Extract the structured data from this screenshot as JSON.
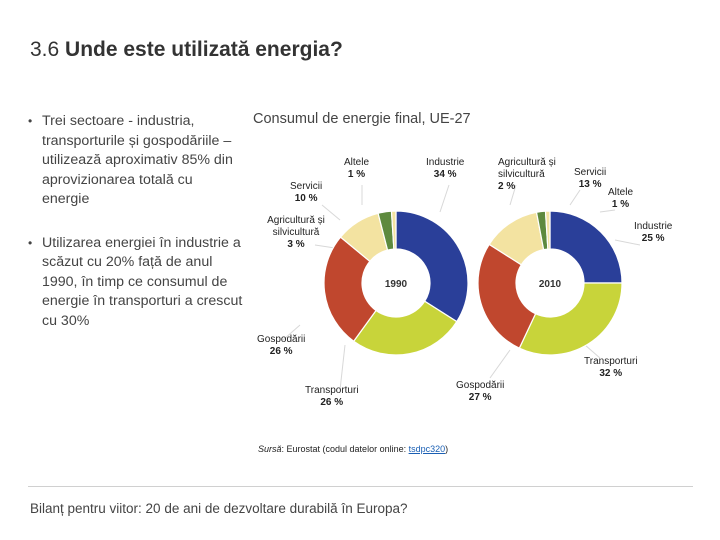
{
  "slide": {
    "number": "3.6",
    "title": "Unde este utilizată energia?",
    "bullets": [
      "Trei sectoare - industria, transporturile și gospodăriile – utilizează aproximativ 85% din aprovizionarea totală cu energie",
      "Utilizarea energiei în industrie a scăzut cu 20% față de anul 1990, în timp ce consumul de energie în transporturi a crescut cu 30%"
    ],
    "footer": "Bilanț pentru viitor: 20 de ani de dezvoltare durabilă în Europa?"
  },
  "source": {
    "label": "Sursă",
    "text": ": Eurostat (codul datelor online: ",
    "link": "tsdpc320",
    "close": ")"
  },
  "chart_data": {
    "type": "pie",
    "title": "Consumul de energie final, UE-27",
    "categories": [
      "Industrie",
      "Transporturi",
      "Gospodării",
      "Servicii",
      "Agricultură și silvicultură",
      "Altele"
    ],
    "colors": [
      "#2a3f99",
      "#c8d43a",
      "#c0472e",
      "#f3e3a1",
      "#5e8a3e",
      "#f3e3a1"
    ],
    "series": [
      {
        "name": "1990",
        "values": [
          34,
          26,
          26,
          10,
          3,
          1
        ]
      },
      {
        "name": "2010",
        "values": [
          25,
          32,
          27,
          13,
          2,
          1
        ]
      }
    ],
    "labels_1990": [
      {
        "name": "Industrie",
        "value": "34 %"
      },
      {
        "name": "Transporturi",
        "value": "26 %"
      },
      {
        "name": "Gospodării",
        "value": "26 %"
      },
      {
        "name": "Servicii",
        "value": "10 %"
      },
      {
        "name": "Agricultură și silvicultură",
        "value": "3 %"
      },
      {
        "name": "Altele",
        "value": "1 %"
      }
    ],
    "labels_2010": [
      {
        "name": "Industrie",
        "value": "25 %"
      },
      {
        "name": "Transporturi",
        "value": "32 %"
      },
      {
        "name": "Gospodării",
        "value": "27 %"
      },
      {
        "name": "Servicii",
        "value": "13 %"
      },
      {
        "name": "Agricultură și silvicultură",
        "value": "2 %"
      },
      {
        "name": "Altele",
        "value": "1 %"
      }
    ]
  }
}
